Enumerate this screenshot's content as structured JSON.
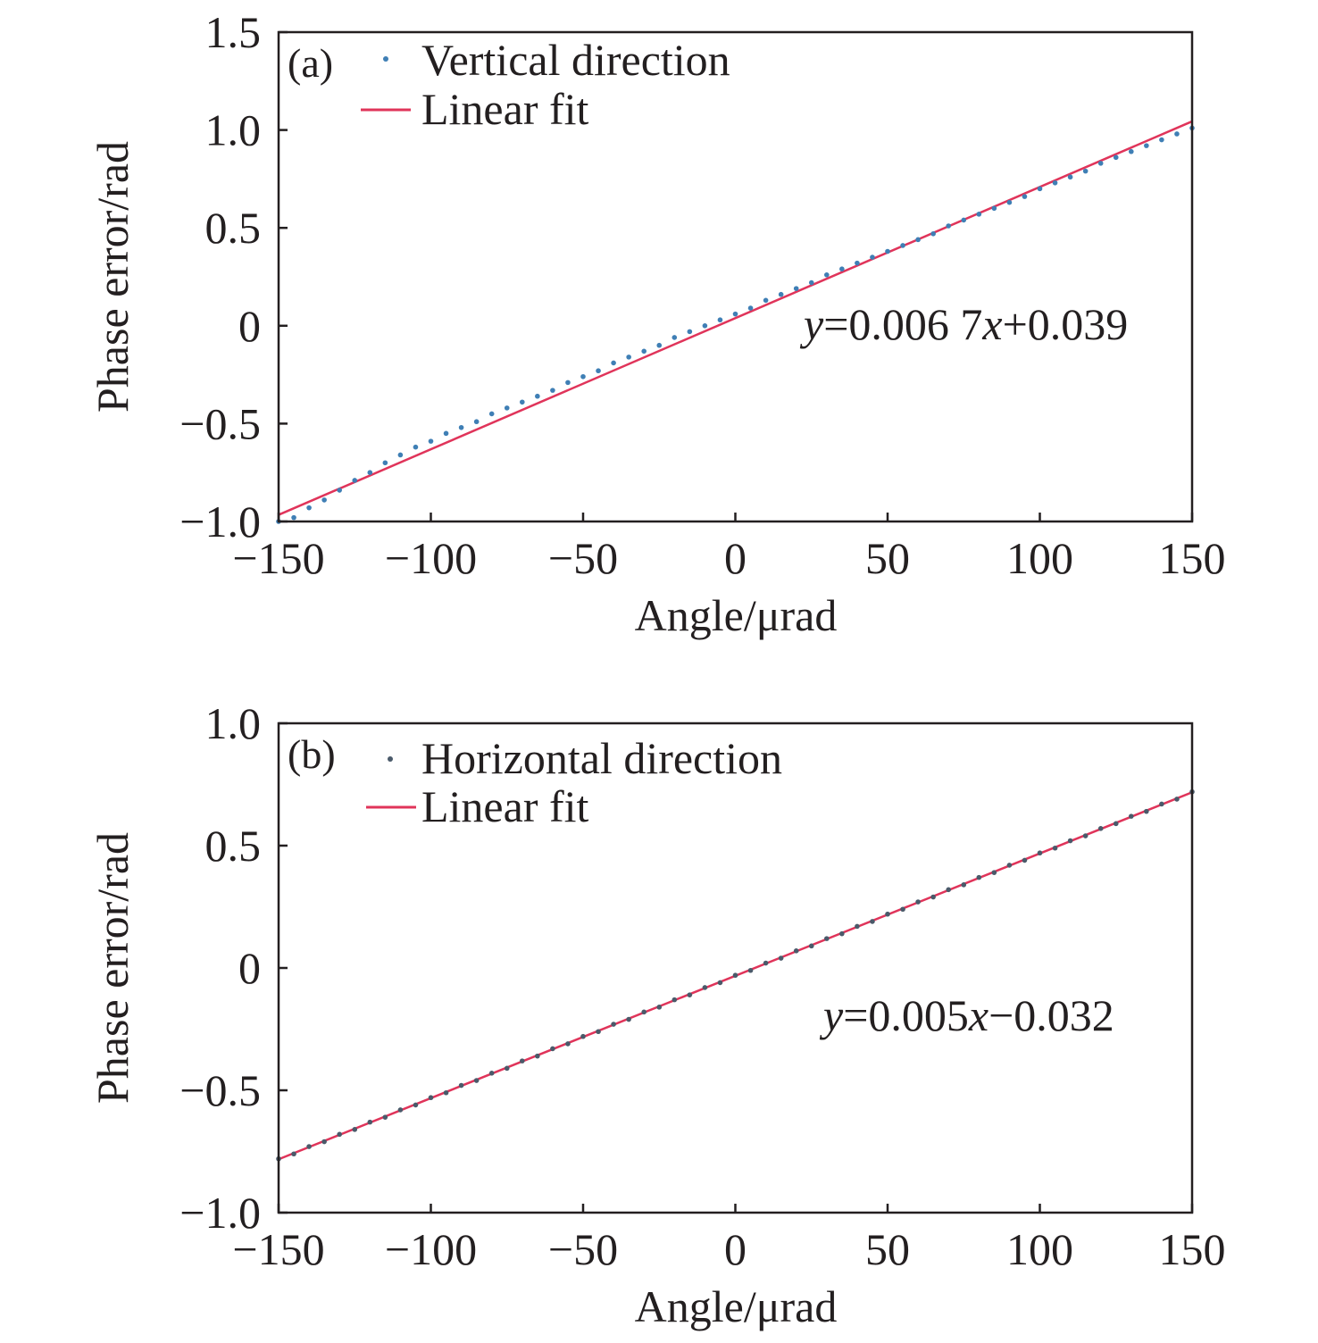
{
  "chart_data": [
    {
      "type": "scatter",
      "panel_label": "(a)",
      "xlabel": "Angle/μrad",
      "ylabel": "Phase error/rad",
      "xlim": [
        -150,
        150
      ],
      "ylim": [
        -1.0,
        1.5
      ],
      "x_ticks": [
        -150,
        -100,
        -50,
        0,
        50,
        100,
        150
      ],
      "x_tick_labels": [
        "−150",
        "−100",
        "−50",
        "0",
        "50",
        "100",
        "150"
      ],
      "y_ticks": [
        -1.0,
        -0.5,
        0,
        0.5,
        1.0,
        1.5
      ],
      "y_tick_labels": [
        "−1.0",
        "−0.5",
        "0",
        "0.5",
        "1.0",
        "1.5"
      ],
      "legend_position": "top-left",
      "equation": "y=0.006 7x+0.039",
      "equation_parts": [
        "y",
        "=0.006 7",
        "x",
        "+0.039"
      ],
      "series": [
        {
          "name": "Vertical direction",
          "kind": "scatter",
          "color": "#3f7fb5",
          "x": [
            -150,
            -145,
            -140,
            -135,
            -130,
            -125,
            -120,
            -115,
            -110,
            -105,
            -100,
            -95,
            -90,
            -85,
            -80,
            -75,
            -70,
            -65,
            -60,
            -55,
            -50,
            -45,
            -40,
            -35,
            -30,
            -25,
            -20,
            -15,
            -10,
            -5,
            0,
            5,
            10,
            15,
            20,
            25,
            30,
            35,
            40,
            45,
            50,
            55,
            60,
            65,
            70,
            75,
            80,
            85,
            90,
            95,
            100,
            105,
            110,
            115,
            120,
            125,
            130,
            135,
            140,
            145,
            150
          ],
          "y": [
            -1.01,
            -0.98,
            -0.93,
            -0.89,
            -0.84,
            -0.79,
            -0.75,
            -0.7,
            -0.66,
            -0.62,
            -0.59,
            -0.55,
            -0.52,
            -0.49,
            -0.45,
            -0.42,
            -0.39,
            -0.36,
            -0.33,
            -0.29,
            -0.26,
            -0.23,
            -0.19,
            -0.16,
            -0.13,
            -0.1,
            -0.06,
            -0.03,
            0.0,
            0.03,
            0.06,
            0.09,
            0.13,
            0.16,
            0.19,
            0.22,
            0.26,
            0.29,
            0.32,
            0.35,
            0.38,
            0.41,
            0.44,
            0.47,
            0.51,
            0.54,
            0.57,
            0.6,
            0.63,
            0.66,
            0.7,
            0.73,
            0.76,
            0.79,
            0.83,
            0.86,
            0.89,
            0.92,
            0.95,
            0.98,
            1.01
          ]
        },
        {
          "name": "Linear fit",
          "kind": "line",
          "color": "#e0345a",
          "slope": 0.0067,
          "intercept": 0.039
        }
      ]
    },
    {
      "type": "scatter",
      "panel_label": "(b)",
      "xlabel": "Angle/μrad",
      "ylabel": "Phase error/rad",
      "xlim": [
        -150,
        150
      ],
      "ylim": [
        -1.0,
        1.0
      ],
      "x_ticks": [
        -150,
        -100,
        -50,
        0,
        50,
        100,
        150
      ],
      "x_tick_labels": [
        "−150",
        "−100",
        "−50",
        "0",
        "50",
        "100",
        "150"
      ],
      "y_ticks": [
        -1.0,
        -0.5,
        0,
        0.5,
        1.0
      ],
      "y_tick_labels": [
        "−1.0",
        "−0.5",
        "0",
        "0.5",
        "1.0"
      ],
      "legend_position": "top-left",
      "equation": "y=0.005x−0.032",
      "equation_parts": [
        "y",
        "=0.005",
        "x",
        "−0.032"
      ],
      "series": [
        {
          "name": "Horizontal direction",
          "kind": "scatter",
          "color": "#4a5a6a",
          "x": [
            -150,
            -145,
            -140,
            -135,
            -130,
            -125,
            -120,
            -115,
            -110,
            -105,
            -100,
            -95,
            -90,
            -85,
            -80,
            -75,
            -70,
            -65,
            -60,
            -55,
            -50,
            -45,
            -40,
            -35,
            -30,
            -25,
            -20,
            -15,
            -10,
            -5,
            0,
            5,
            10,
            15,
            20,
            25,
            30,
            35,
            40,
            45,
            50,
            55,
            60,
            65,
            70,
            75,
            80,
            85,
            90,
            95,
            100,
            105,
            110,
            115,
            120,
            125,
            130,
            135,
            140,
            145,
            150
          ],
          "y": [
            -0.78,
            -0.76,
            -0.73,
            -0.71,
            -0.68,
            -0.66,
            -0.63,
            -0.61,
            -0.58,
            -0.56,
            -0.53,
            -0.51,
            -0.48,
            -0.46,
            -0.43,
            -0.41,
            -0.38,
            -0.36,
            -0.33,
            -0.31,
            -0.28,
            -0.26,
            -0.23,
            -0.21,
            -0.18,
            -0.16,
            -0.13,
            -0.11,
            -0.08,
            -0.06,
            -0.03,
            -0.01,
            0.02,
            0.04,
            0.07,
            0.09,
            0.12,
            0.14,
            0.17,
            0.19,
            0.22,
            0.24,
            0.27,
            0.29,
            0.32,
            0.34,
            0.37,
            0.39,
            0.42,
            0.44,
            0.47,
            0.49,
            0.52,
            0.54,
            0.57,
            0.59,
            0.62,
            0.64,
            0.67,
            0.69,
            0.72
          ]
        },
        {
          "name": "Linear fit",
          "kind": "line",
          "color": "#e0345a",
          "slope": 0.005,
          "intercept": -0.032
        }
      ]
    }
  ]
}
